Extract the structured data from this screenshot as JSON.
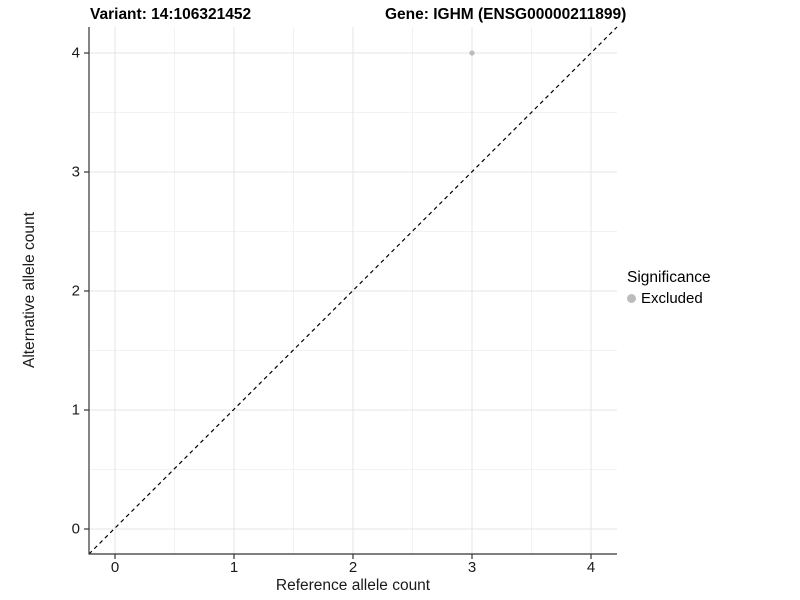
{
  "header": {
    "variant_title": "Variant: 14:106321452",
    "gene_title": "Gene: IGHM (ENSG00000211899)"
  },
  "legend": {
    "title": "Significance",
    "items": [
      {
        "label": "Excluded",
        "color": "#bcbcbc"
      }
    ]
  },
  "chart_data": {
    "type": "scatter",
    "title": "Variant: 14:106321452  |  Gene: IGHM (ENSG00000211899)",
    "xlabel": "Reference allele count",
    "ylabel": "Alternative allele count",
    "xlim": [
      -0.22,
      4.22
    ],
    "ylim": [
      -0.22,
      4.22
    ],
    "x_ticks": [
      0,
      1,
      2,
      3,
      4
    ],
    "y_ticks": [
      0,
      1,
      2,
      3,
      4
    ],
    "x_minor_ticks": [
      0.5,
      1.5,
      2.5,
      3.5
    ],
    "y_minor_ticks": [
      0.5,
      1.5,
      2.5,
      3.5
    ],
    "grid": "major and minor, light gray on white",
    "legend_position": "right",
    "series": [
      {
        "name": "Excluded",
        "color": "#bcbcbc",
        "points": [
          {
            "x": 3,
            "y": 4
          }
        ]
      }
    ],
    "reference_line": {
      "equation": "y = x",
      "style": "dashed",
      "color": "#000000"
    }
  },
  "colors": {
    "background": "#ffffff",
    "grid_major": "#e4e4e4",
    "grid_minor": "#f2f2f2",
    "axis_line": "#333333",
    "axis_text": "#1a1a1a",
    "point": "#bcbcbc",
    "dashed_line": "#000000"
  }
}
